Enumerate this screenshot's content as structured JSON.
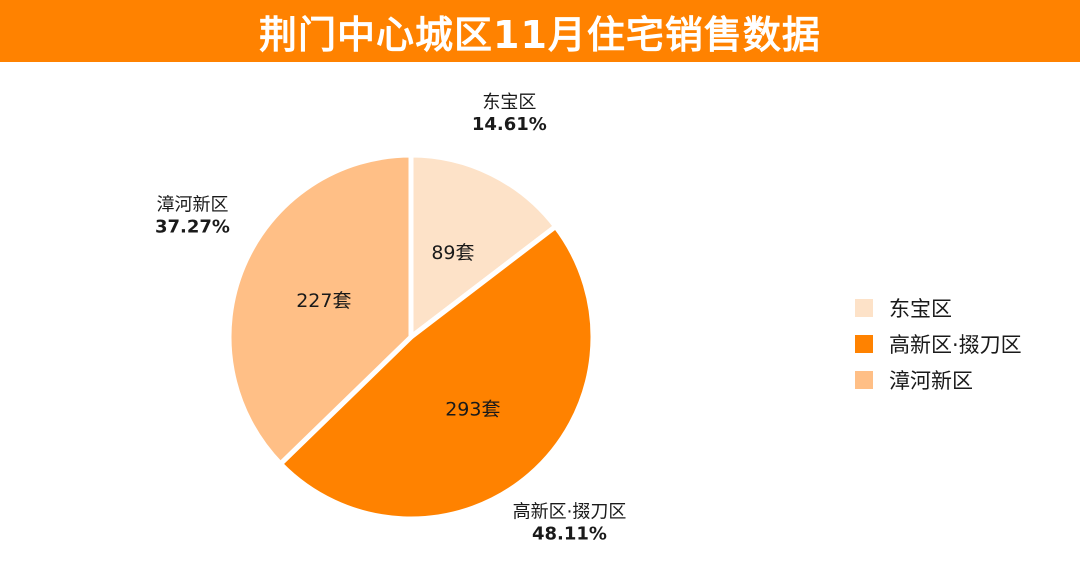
{
  "header": {
    "title": "荆门中心城区11月住宅销售数据"
  },
  "chart_data": {
    "type": "pie",
    "title": "荆门中心城区11月住宅销售数据",
    "categories": [
      "东宝区",
      "高新区·掇刀区",
      "漳河新区"
    ],
    "values": [
      89,
      293,
      227
    ],
    "value_labels": [
      "89套",
      "293套",
      "227套"
    ],
    "percent_labels": [
      "14.61%",
      "48.11%",
      "37.27%"
    ],
    "colors": [
      "#fde2c8",
      "#ff8200",
      "#ffbf86"
    ],
    "start_angle_deg": 0,
    "direction": "clockwise",
    "legend": "right"
  }
}
